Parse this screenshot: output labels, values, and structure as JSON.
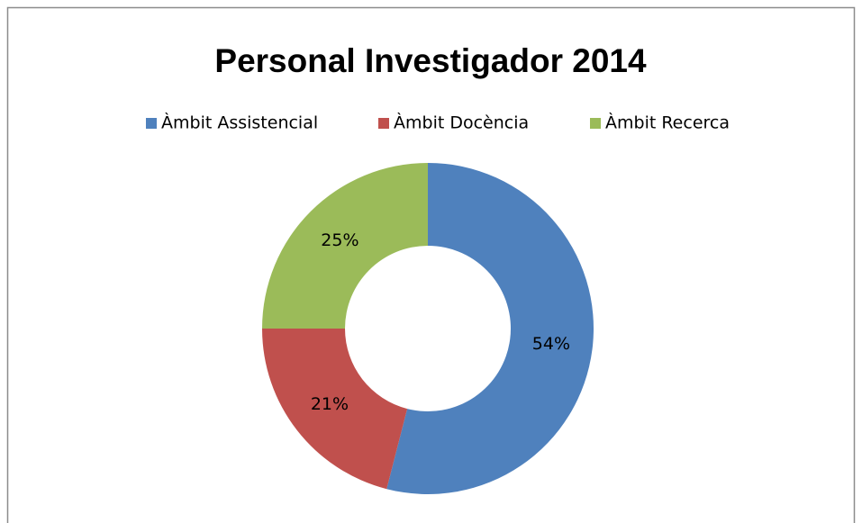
{
  "chart_data": {
    "type": "donut",
    "title": "Personal Investigador 2014",
    "categories": [
      "Àmbit Assistencial",
      "Àmbit Docència",
      "Àmbit Recerca"
    ],
    "values": [
      54,
      21,
      25
    ],
    "value_labels": [
      "54%",
      "21%",
      "25%"
    ],
    "colors": [
      "#4f81bd",
      "#c0504d",
      "#9bbb59"
    ],
    "legend": "top"
  }
}
